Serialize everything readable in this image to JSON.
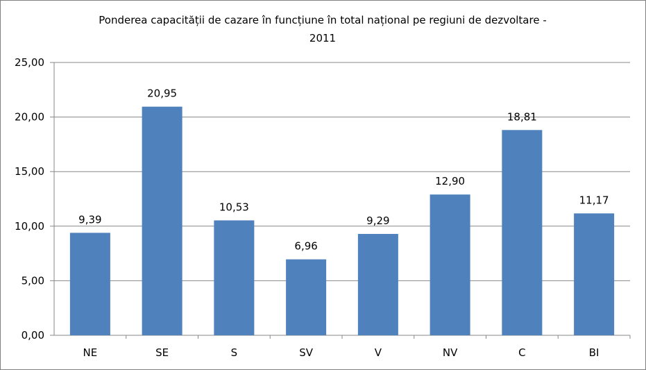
{
  "chart_data": {
    "type": "bar",
    "title_line1": "Ponderea capacității de cazare în funcțiune în total național pe regiuni de dezvoltare -",
    "title_line2": "2011",
    "categories": [
      "NE",
      "SE",
      "S",
      "SV",
      "V",
      "NV",
      "C",
      "BI"
    ],
    "values": [
      9.39,
      20.95,
      10.53,
      6.96,
      9.29,
      12.9,
      18.81,
      11.17
    ],
    "data_labels": [
      "9,39",
      "20,95",
      "10,53",
      "6,96",
      "9,29",
      "12,90",
      "18,81",
      "11,17"
    ],
    "y_ticks": [
      "0,00",
      "5,00",
      "10,00",
      "15,00",
      "20,00",
      "25,00"
    ],
    "ylim": [
      0,
      25
    ],
    "xlabel": "",
    "ylabel": "",
    "grid": true,
    "legend": "none",
    "bar_color": "#4f81bd"
  }
}
